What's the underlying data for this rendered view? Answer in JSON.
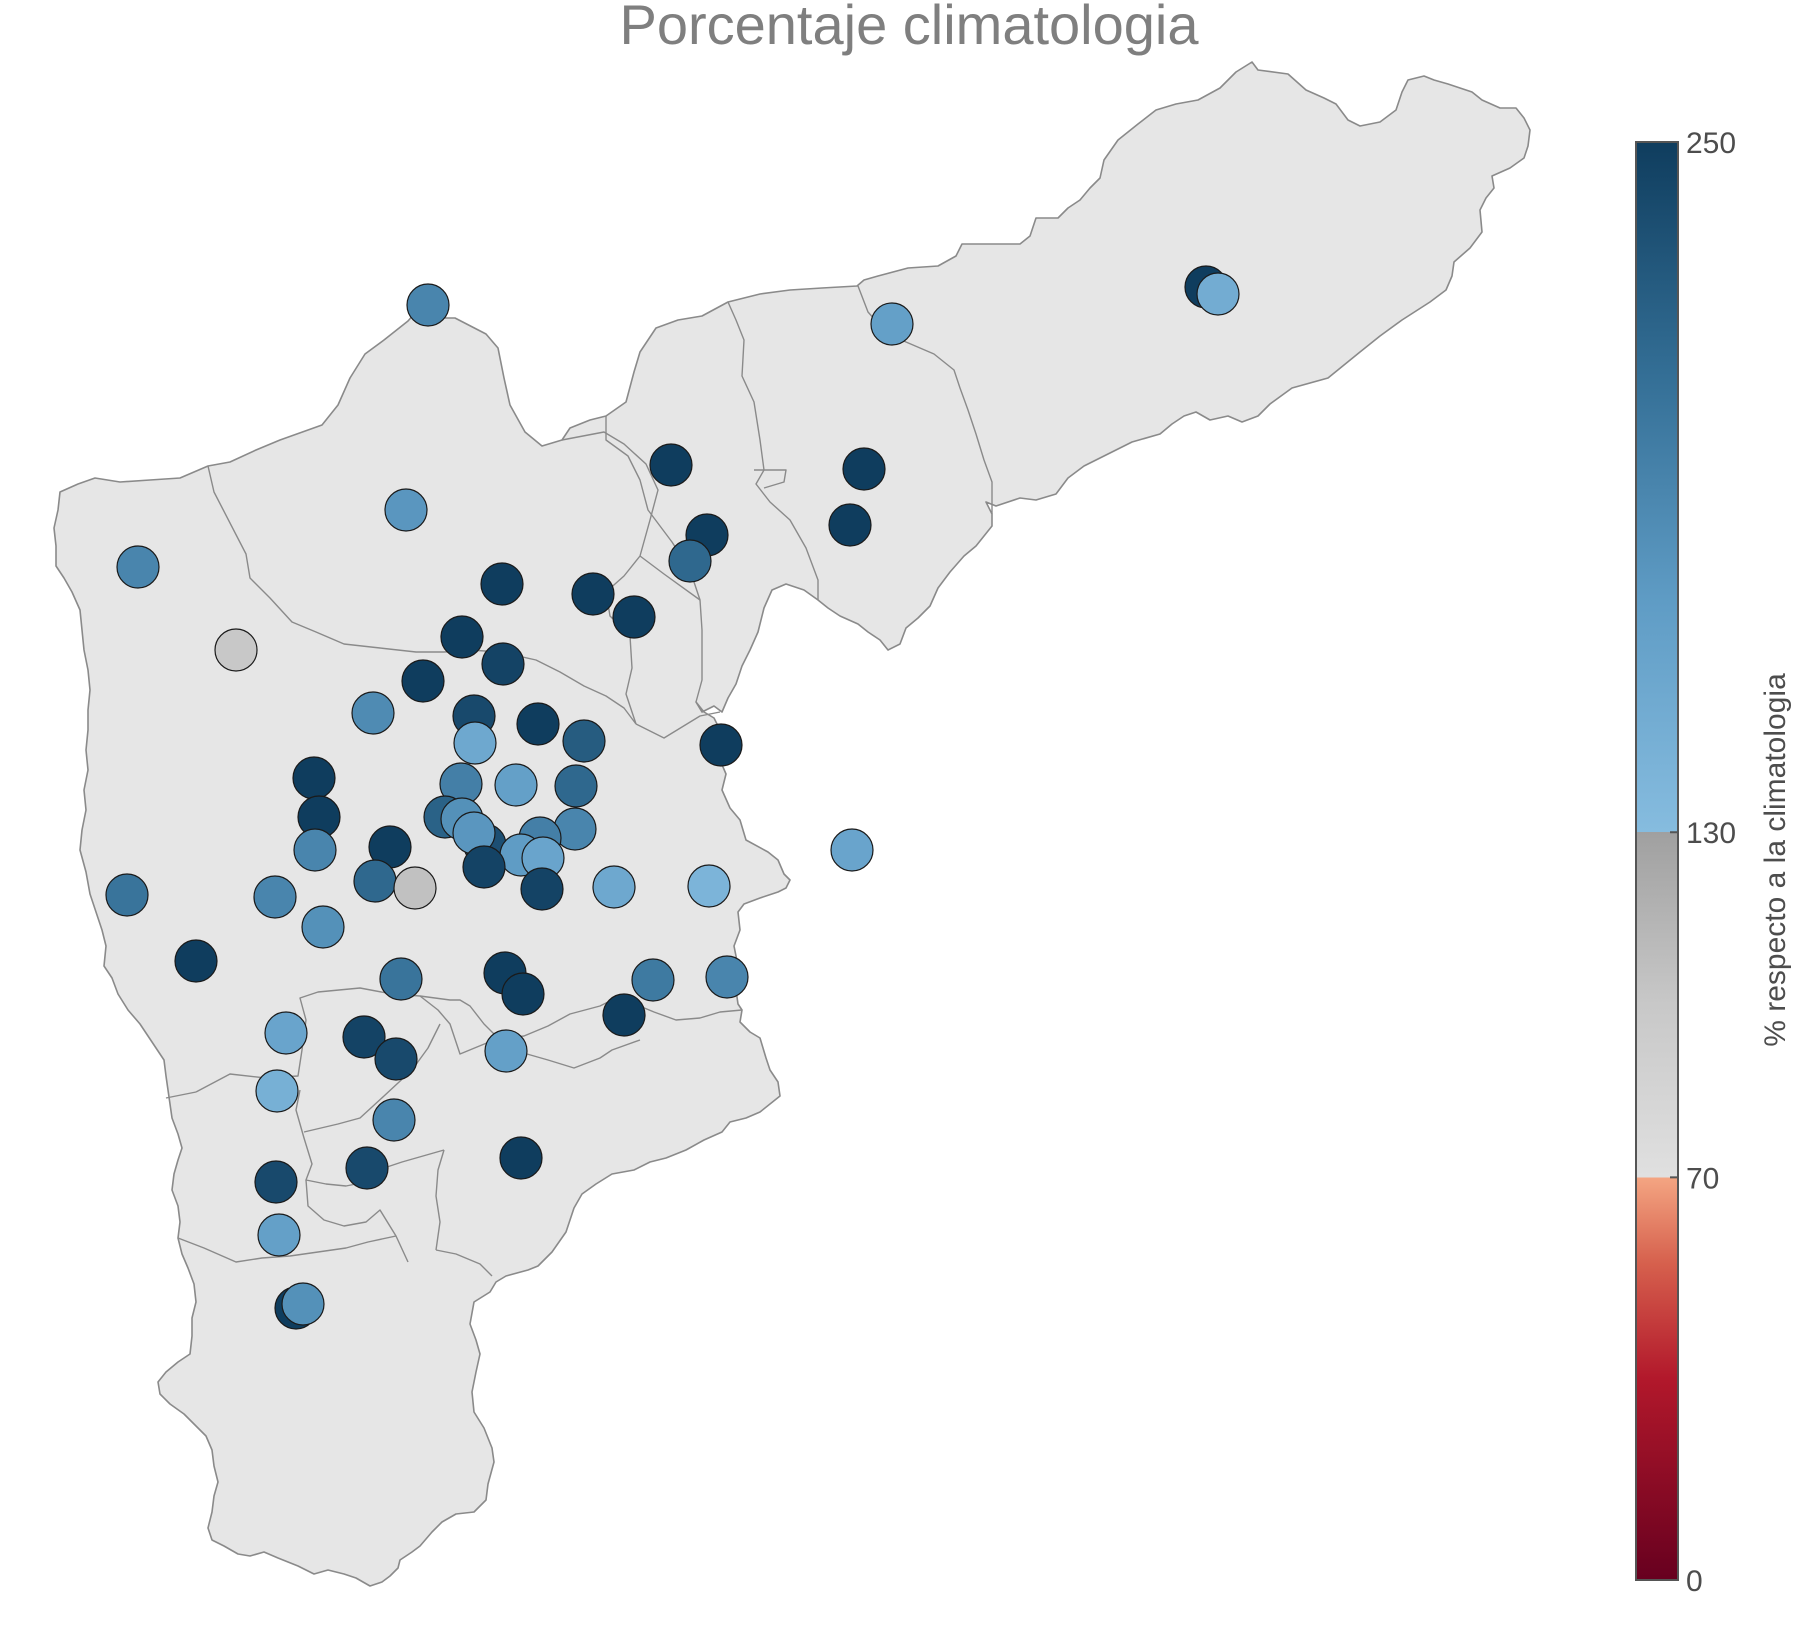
{
  "title": "Porcentaje climatologia",
  "legend": {
    "title": "% respecto a la climatologia",
    "ticks": [
      "0",
      "70",
      "130",
      "250"
    ],
    "stops": [
      {
        "value": 0,
        "color": "#67001f"
      },
      {
        "value": 35,
        "color": "#b2182b"
      },
      {
        "value": 55,
        "color": "#d6604d"
      },
      {
        "value": 70,
        "color": "#f4a582"
      },
      {
        "value": 70,
        "color": "#e0e0e0"
      },
      {
        "value": 100,
        "color": "#c8c8c8"
      },
      {
        "value": 130,
        "color": "#a0a0a0"
      },
      {
        "value": 130,
        "color": "#86bcdf"
      },
      {
        "value": 170,
        "color": "#5f9cc5"
      },
      {
        "value": 210,
        "color": "#336e95"
      },
      {
        "value": 250,
        "color": "#0f3d5e"
      }
    ]
  },
  "map": {
    "fill_color": "#e6e6e6",
    "border_color": "#8a8a8a"
  },
  "stations": [
    {
      "id": "s1",
      "pct": 190
    },
    {
      "id": "s2",
      "pct": 165
    },
    {
      "id": "s3",
      "pct": 250
    },
    {
      "id": "s4",
      "pct": 150
    },
    {
      "id": "s5",
      "pct": 250
    },
    {
      "id": "s6",
      "pct": 250
    },
    {
      "id": "s7",
      "pct": 250
    },
    {
      "id": "s8",
      "pct": 250
    },
    {
      "id": "s9",
      "pct": 175
    },
    {
      "id": "s10",
      "pct": 190
    },
    {
      "id": "s11",
      "pct": 215
    },
    {
      "id": "s12",
      "pct": 250
    },
    {
      "id": "s13",
      "pct": 250
    },
    {
      "id": "s14",
      "pct": 250
    },
    {
      "id": "s15",
      "pct": 250
    },
    {
      "id": "s16",
      "pct": 245
    },
    {
      "id": "s17",
      "pct": 100
    },
    {
      "id": "s18",
      "pct": 250
    },
    {
      "id": "s19",
      "pct": 250
    },
    {
      "id": "s20",
      "pct": 240
    },
    {
      "id": "s21",
      "pct": 185
    },
    {
      "id": "s22",
      "pct": 225
    },
    {
      "id": "s23",
      "pct": 155
    },
    {
      "id": "s24",
      "pct": 250
    },
    {
      "id": "s25",
      "pct": 250
    },
    {
      "id": "s26",
      "pct": 250
    },
    {
      "id": "s27",
      "pct": 195
    },
    {
      "id": "s28",
      "pct": 220
    },
    {
      "id": "s29",
      "pct": 165
    },
    {
      "id": "s30",
      "pct": 215
    },
    {
      "id": "s31",
      "pct": 235
    },
    {
      "id": "s32",
      "pct": 190
    },
    {
      "id": "s33",
      "pct": 180
    },
    {
      "id": "s34",
      "pct": 175
    },
    {
      "id": "s35",
      "pct": 195
    },
    {
      "id": "s36",
      "pct": 190
    },
    {
      "id": "s37",
      "pct": 250
    },
    {
      "id": "s38",
      "pct": 170
    },
    {
      "id": "s39",
      "pct": 215
    },
    {
      "id": "s40",
      "pct": 245
    },
    {
      "id": "s41",
      "pct": 160
    },
    {
      "id": "s42",
      "pct": 105
    },
    {
      "id": "s43",
      "pct": 245
    },
    {
      "id": "s44",
      "pct": 160
    },
    {
      "id": "s45",
      "pct": 155
    },
    {
      "id": "s46",
      "pct": 205
    },
    {
      "id": "s47",
      "pct": 190
    },
    {
      "id": "s48",
      "pct": 140
    },
    {
      "id": "s49",
      "pct": 180
    },
    {
      "id": "s50",
      "pct": 250
    },
    {
      "id": "s51",
      "pct": 205
    },
    {
      "id": "s52",
      "pct": 250
    },
    {
      "id": "s53",
      "pct": 250
    },
    {
      "id": "s54",
      "pct": 200
    },
    {
      "id": "s55",
      "pct": 190
    },
    {
      "id": "s56",
      "pct": 250
    },
    {
      "id": "s57",
      "pct": 160
    },
    {
      "id": "s58",
      "pct": 245
    },
    {
      "id": "s59",
      "pct": 240
    },
    {
      "id": "s60",
      "pct": 165
    },
    {
      "id": "s61",
      "pct": 145
    },
    {
      "id": "s62",
      "pct": 190
    },
    {
      "id": "s63",
      "pct": 240
    },
    {
      "id": "s64",
      "pct": 250
    },
    {
      "id": "s65",
      "pct": 240
    },
    {
      "id": "s66",
      "pct": 165
    },
    {
      "id": "s67",
      "pct": 250
    },
    {
      "id": "s68",
      "pct": 180
    }
  ]
}
